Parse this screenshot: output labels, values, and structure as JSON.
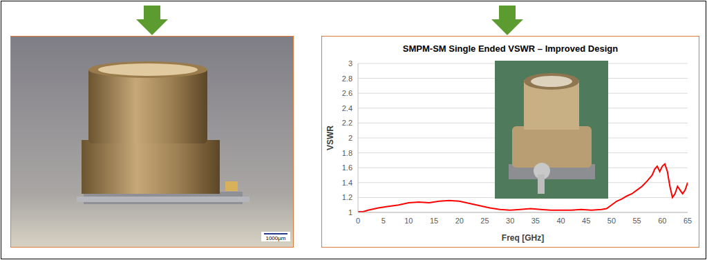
{
  "chart_data": {
    "type": "line",
    "title": "SMPM-SM Single Ended VSWR – Improved Design",
    "x_label": "Freq [GHz]",
    "y_label": "VSWR",
    "x": [
      0,
      1,
      2,
      4,
      6,
      8,
      10,
      12,
      14,
      16,
      18,
      20,
      22,
      24,
      26,
      28,
      30,
      32,
      34,
      36,
      38,
      40,
      42,
      44,
      46,
      48,
      49,
      50,
      51,
      52,
      53,
      54,
      55,
      56,
      57,
      58,
      58.5,
      59,
      59.5,
      60,
      60.5,
      61,
      61.5,
      62,
      62.5,
      63,
      63.5,
      64,
      64.5,
      65
    ],
    "series": [
      {
        "name": "VSWR",
        "color": "#ff0000",
        "values": [
          1.01,
          1.01,
          1.03,
          1.06,
          1.08,
          1.1,
          1.13,
          1.14,
          1.13,
          1.15,
          1.16,
          1.15,
          1.12,
          1.09,
          1.06,
          1.04,
          1.03,
          1.04,
          1.05,
          1.04,
          1.03,
          1.03,
          1.03,
          1.04,
          1.03,
          1.04,
          1.05,
          1.1,
          1.15,
          1.18,
          1.22,
          1.25,
          1.3,
          1.35,
          1.42,
          1.5,
          1.58,
          1.62,
          1.55,
          1.62,
          1.65,
          1.55,
          1.35,
          1.2,
          1.25,
          1.35,
          1.3,
          1.25,
          1.3,
          1.4
        ]
      }
    ],
    "xlim": [
      0,
      65
    ],
    "xticks": [
      0,
      5,
      10,
      15,
      20,
      25,
      30,
      35,
      40,
      45,
      50,
      55,
      60,
      65
    ],
    "ylim": [
      1,
      3
    ],
    "yticks": [
      1,
      1.2,
      1.4,
      1.6,
      1.8,
      2,
      2.2,
      2.4,
      2.6,
      2.8,
      3
    ],
    "grid": true
  },
  "photo": {
    "scale_bar": "1000µm"
  }
}
